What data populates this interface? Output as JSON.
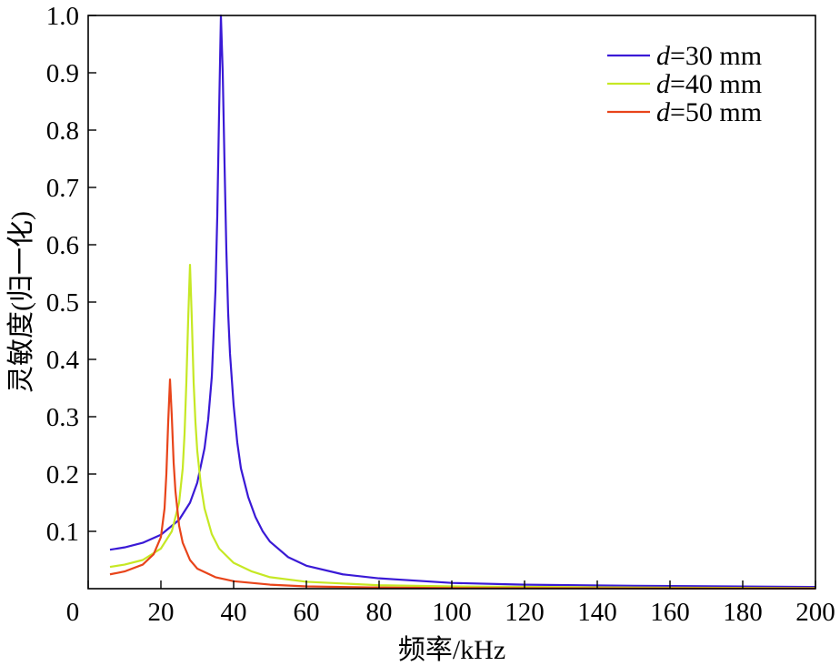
{
  "chart_data": {
    "type": "line",
    "xlabel": "频率/kHz",
    "ylabel": "灵敏度(归一化)",
    "xlim": [
      0,
      200
    ],
    "ylim": [
      0,
      1.0
    ],
    "x_ticks": [
      0,
      20,
      40,
      60,
      80,
      100,
      120,
      140,
      160,
      180,
      200
    ],
    "y_ticks": [
      0.1,
      0.2,
      0.3,
      0.4,
      0.5,
      0.6,
      0.7,
      0.8,
      0.9,
      1.0
    ],
    "x_tick_labels": [
      "0",
      "20",
      "40",
      "60",
      "80",
      "100",
      "120",
      "140",
      "160",
      "180",
      "200"
    ],
    "y_tick_labels": [
      "0.1",
      "0.2",
      "0.3",
      "0.4",
      "0.5",
      "0.6",
      "0.7",
      "0.8",
      "0.9",
      "1.0"
    ],
    "grid": false,
    "legend_position": "top-right",
    "series": [
      {
        "name": "d=30 mm",
        "name_italic": "d",
        "name_rest": "=30 mm",
        "color": "#3a1ad6",
        "x": [
          6,
          10,
          15,
          20,
          25,
          28,
          30,
          32,
          33,
          34,
          35,
          35.5,
          36,
          36.5,
          37,
          37.5,
          38,
          38.5,
          39,
          40,
          41,
          42,
          44,
          46,
          48,
          50,
          55,
          60,
          70,
          80,
          100,
          120,
          150,
          200
        ],
        "y": [
          0.068,
          0.072,
          0.08,
          0.094,
          0.12,
          0.15,
          0.185,
          0.245,
          0.295,
          0.37,
          0.52,
          0.65,
          0.83,
          1.0,
          0.9,
          0.74,
          0.59,
          0.48,
          0.41,
          0.32,
          0.255,
          0.21,
          0.16,
          0.125,
          0.1,
          0.082,
          0.055,
          0.04,
          0.025,
          0.018,
          0.01,
          0.007,
          0.005,
          0.003
        ]
      },
      {
        "name": "d=40 mm",
        "name_italic": "d",
        "name_rest": "=40 mm",
        "color": "#c6e824",
        "x": [
          6,
          10,
          15,
          20,
          23,
          25,
          26,
          26.5,
          27,
          27.5,
          28,
          28.5,
          29,
          29.5,
          30,
          31,
          32,
          34,
          36,
          40,
          45,
          50,
          60,
          80,
          100,
          150,
          200
        ],
        "y": [
          0.038,
          0.042,
          0.05,
          0.07,
          0.1,
          0.15,
          0.21,
          0.27,
          0.36,
          0.47,
          0.565,
          0.47,
          0.36,
          0.29,
          0.24,
          0.18,
          0.14,
          0.095,
          0.07,
          0.045,
          0.03,
          0.02,
          0.012,
          0.006,
          0.004,
          0.002,
          0.001
        ]
      },
      {
        "name": "d=50 mm",
        "name_italic": "d",
        "name_rest": "=50 mm",
        "color": "#e8441a",
        "x": [
          6,
          10,
          15,
          18,
          20,
          21,
          21.5,
          22,
          22.5,
          23,
          23.5,
          24,
          25,
          26,
          28,
          30,
          35,
          40,
          50,
          60,
          80,
          100,
          150,
          200
        ],
        "y": [
          0.025,
          0.03,
          0.042,
          0.06,
          0.09,
          0.14,
          0.2,
          0.29,
          0.365,
          0.3,
          0.22,
          0.17,
          0.11,
          0.08,
          0.05,
          0.035,
          0.02,
          0.013,
          0.007,
          0.004,
          0.002,
          0.001,
          0.0005,
          0.0003
        ]
      }
    ]
  }
}
